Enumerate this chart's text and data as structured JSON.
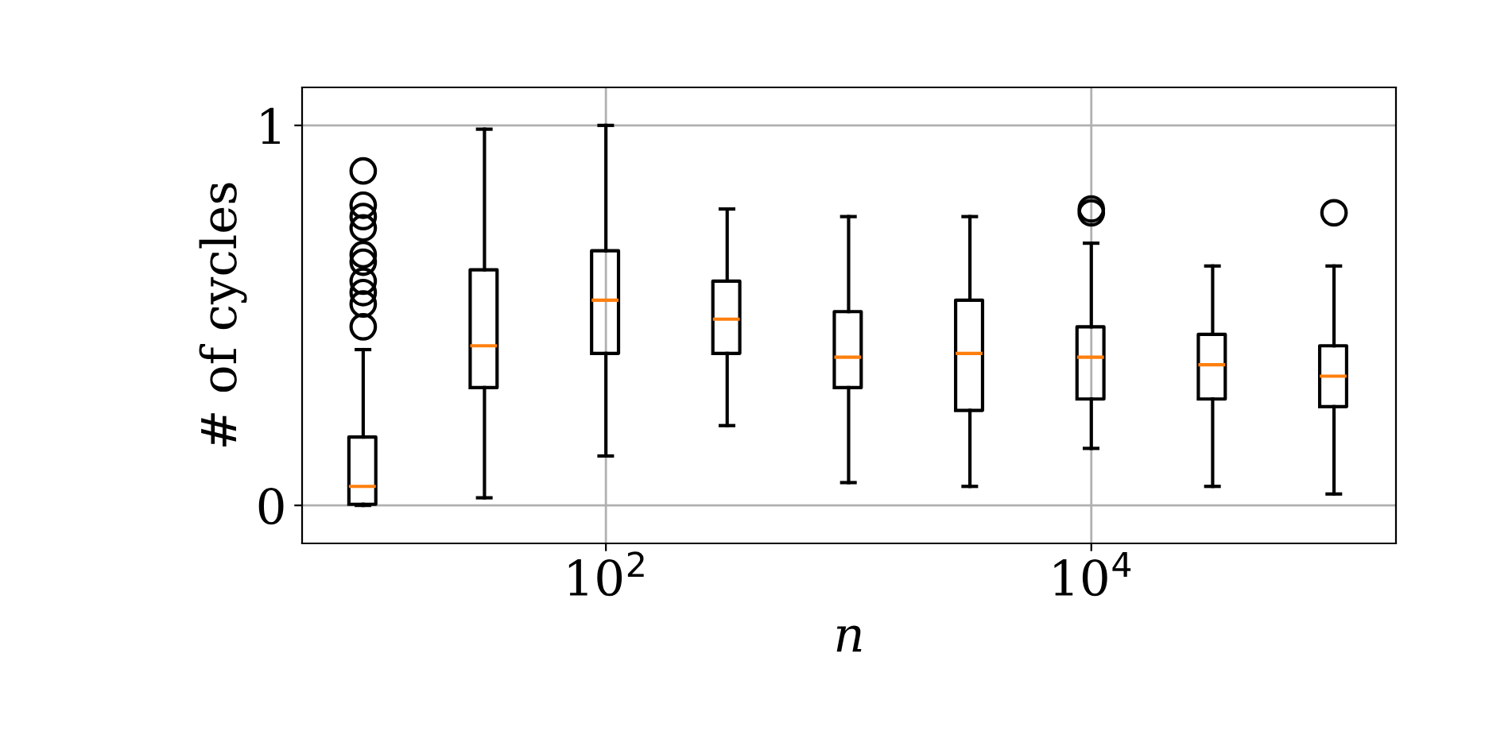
{
  "chart_data": {
    "type": "box",
    "xlabel": "n",
    "ylabel": "# of cycles",
    "log": "x",
    "x": [
      10,
      31.6,
      100,
      316,
      1000,
      3162,
      10000,
      31623,
      100000
    ],
    "boxes": [
      {
        "low": 0,
        "q1": 0.003,
        "median": 0.05,
        "q3": 0.18,
        "high": 0.41,
        "outliers": [
          0.88,
          0.79,
          0.76,
          0.73,
          0.66,
          0.64,
          0.59,
          0.56,
          0.53,
          0.47
        ]
      },
      {
        "low": 0.02,
        "q1": 0.31,
        "median": 0.42,
        "q3": 0.62,
        "high": 0.99
      },
      {
        "low": 0.13,
        "q1": 0.4,
        "median": 0.54,
        "q3": 0.67,
        "high": 1.0
      },
      {
        "low": 0.21,
        "q1": 0.4,
        "median": 0.49,
        "q3": 0.59,
        "high": 0.78
      },
      {
        "low": 0.06,
        "q1": 0.31,
        "median": 0.39,
        "q3": 0.51,
        "high": 0.76
      },
      {
        "low": 0.05,
        "q1": 0.25,
        "median": 0.4,
        "q3": 0.54,
        "high": 0.76
      },
      {
        "low": 0.15,
        "q1": 0.28,
        "median": 0.39,
        "q3": 0.47,
        "high": 0.69,
        "outliers": [
          0.78,
          0.77
        ]
      },
      {
        "low": 0.05,
        "q1": 0.28,
        "median": 0.37,
        "q3": 0.45,
        "high": 0.63
      },
      {
        "low": 0.03,
        "q1": 0.26,
        "median": 0.34,
        "q3": 0.42,
        "high": 0.63,
        "outliers": [
          0.77
        ]
      }
    ],
    "xlim": [
      5.6,
      180000
    ],
    "xticks": [
      {
        "value": 100,
        "label": "10$^{2}$"
      },
      {
        "value": 10000,
        "label": "10$^{4}$"
      }
    ],
    "ylim": [
      -0.1,
      1.1
    ],
    "yticks": [
      0,
      1
    ],
    "grid": true
  }
}
